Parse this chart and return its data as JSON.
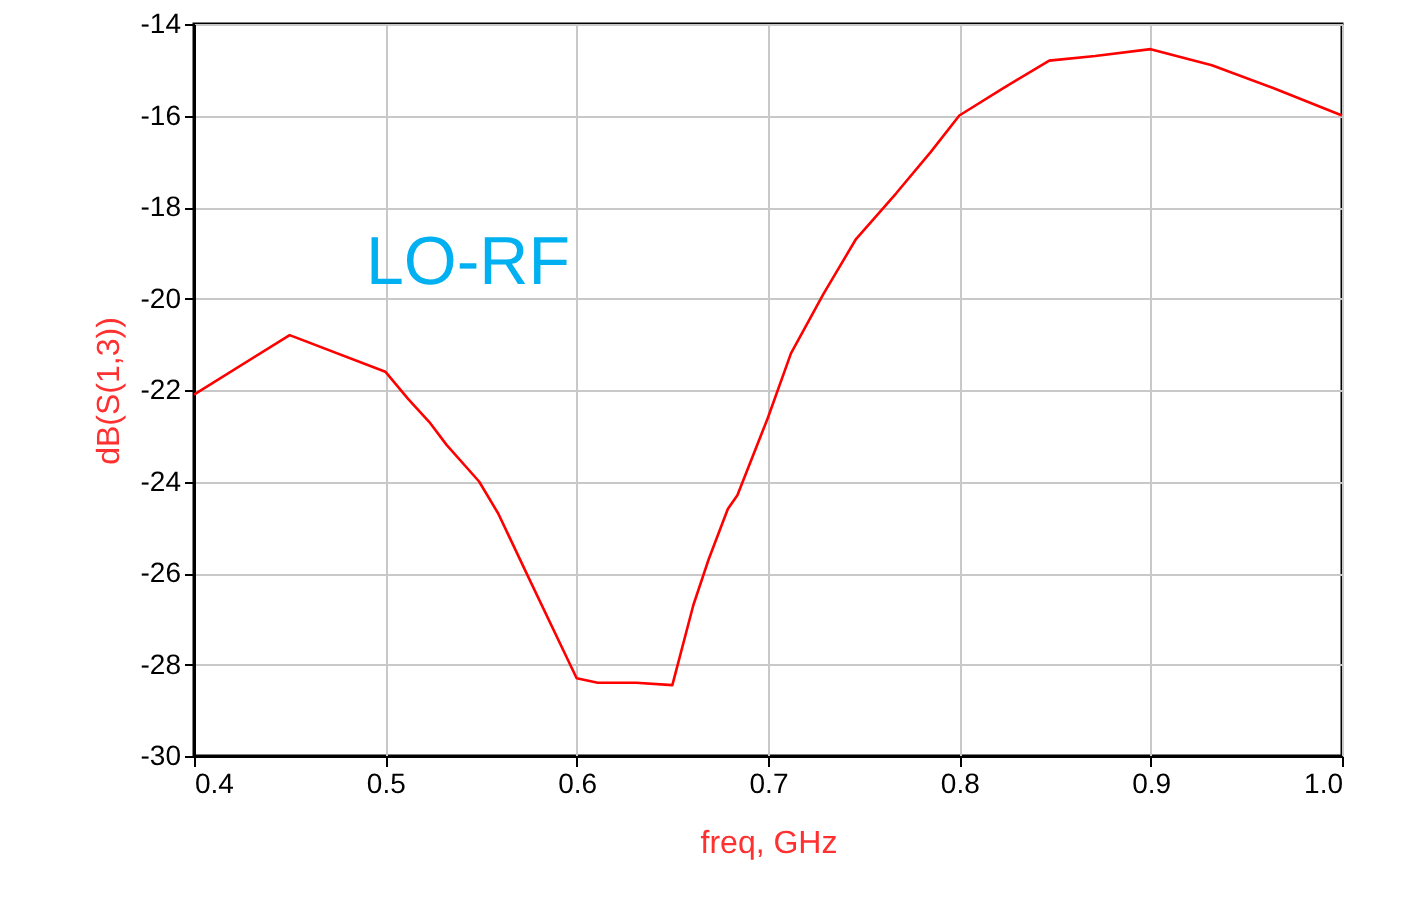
{
  "chart_data": {
    "type": "line",
    "xlabel": "freq, GHz",
    "ylabel": "dB(S(1,3))",
    "annotations": [
      "LO-RF"
    ],
    "x": [
      0.4,
      0.45,
      0.5,
      0.512,
      0.523,
      0.532,
      0.549,
      0.559,
      0.576,
      0.6,
      0.611,
      0.631,
      0.65,
      0.661,
      0.669,
      0.679,
      0.684,
      0.7,
      0.712,
      0.729,
      0.746,
      0.767,
      0.785,
      0.8,
      0.823,
      0.847,
      0.871,
      0.9,
      0.932,
      0.964,
      1.0
    ],
    "series": [
      {
        "color": "#ff0000",
        "values": [
          -22.1,
          -20.8,
          -21.6,
          -22.2,
          -22.7,
          -23.2,
          -24.0,
          -24.7,
          -26.2,
          -28.3,
          -28.4,
          -28.4,
          -28.45,
          -26.7,
          -25.7,
          -24.6,
          -24.3,
          -22.6,
          -21.2,
          -19.9,
          -18.7,
          -17.7,
          -16.8,
          -16.0,
          -15.4,
          -14.8,
          -14.7,
          -14.55,
          -14.9,
          -15.4,
          -16.0
        ]
      }
    ],
    "xlim": [
      0.4,
      1.0
    ],
    "xticks": [
      0.4,
      0.5,
      0.6,
      0.7,
      0.8,
      0.9,
      {
        "value": 1.0,
        "label": "1.0"
      }
    ],
    "ylim": [
      -30,
      -14
    ],
    "yticks": [
      -30,
      -28,
      -26,
      -24,
      -22,
      -20,
      -18,
      -16,
      -14
    ],
    "grid": true,
    "marker": "none",
    "line_style": "solid"
  }
}
